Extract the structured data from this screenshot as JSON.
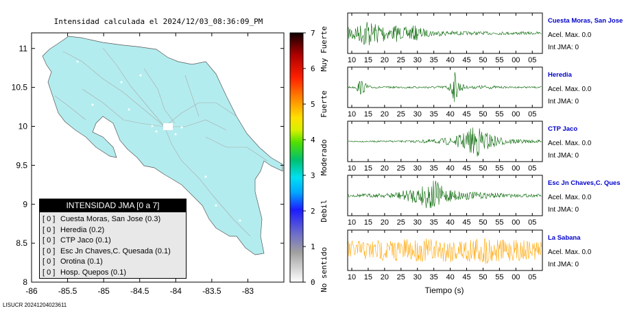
{
  "chart_data": [
    {
      "type": "map",
      "title": "Intensidad calculada el 2024/12/03_08:36:09_PM",
      "xlim": [
        -86,
        -82.5
      ],
      "ylim": [
        8,
        11.2
      ],
      "x_ticks": [
        -86,
        -85.5,
        -85,
        -84.5,
        -84,
        -83.5,
        -83
      ],
      "y_ticks": [
        8,
        8.5,
        9,
        9.5,
        10,
        10.5,
        11
      ],
      "x_tick_labels": [
        "-86",
        "-85.5",
        "-85",
        "-84.5",
        "-84",
        "-83.5",
        "-83"
      ],
      "y_tick_labels": [
        "8",
        "8.5",
        "9",
        "9.5",
        "10",
        "10.5",
        "11"
      ],
      "land_color": "#b3ecee",
      "colorbar": {
        "range": [
          0,
          7
        ],
        "ticks": [
          "0",
          "1",
          "2",
          "3",
          "4",
          "5",
          "6",
          "7"
        ],
        "tick_values": [
          0,
          1,
          2,
          3,
          4,
          5,
          6,
          7
        ],
        "category_labels": [
          {
            "label": "No sentido",
            "value": 0.35
          },
          {
            "label": "Debil",
            "value": 2.0
          },
          {
            "label": "Moderado",
            "value": 3.5
          },
          {
            "label": "Fuerte",
            "value": 5.0
          },
          {
            "label": "Muy Fuerte",
            "value": 6.55
          }
        ]
      },
      "legend": {
        "title": "INTENSIDAD JMA [0 a 7]",
        "placement": "bottom-left",
        "entries": [
          {
            "bracket": "[ 0 ]",
            "name": "Cuesta Moras, San Jose (0.3)"
          },
          {
            "bracket": "[ 0 ]",
            "name": "Heredia (0.2)"
          },
          {
            "bracket": "[ 0 ]",
            "name": "CTP Jaco (0.1)"
          },
          {
            "bracket": "[ 0 ]",
            "name": "Esc Jn Chaves,C. Quesada (0.1)"
          },
          {
            "bracket": "[ 0 ]",
            "name": "Orotina (0.1)"
          },
          {
            "bracket": "[ 0 ]",
            "name": "Hosp. Quepos (0.1)"
          }
        ]
      }
    },
    {
      "type": "line",
      "xlabel": "Tiempo (s)",
      "x_tick_labels": [
        "10",
        "15",
        "20",
        "25",
        "30",
        "35",
        "40",
        "45",
        "50",
        "55",
        "00",
        "05"
      ],
      "series": [
        {
          "name": "Cuesta Moras, San Jose",
          "color": "#006400",
          "acel_label": "Acel. Max. 0.0",
          "int_label": "Int JMA: 0",
          "envelope": [
            [
              0,
              0.3
            ],
            [
              3,
              0.6
            ],
            [
              5,
              0.4
            ],
            [
              10,
              0.9
            ],
            [
              13,
              0.5
            ],
            [
              17,
              0.7
            ],
            [
              21,
              0.3
            ],
            [
              25,
              0.5
            ],
            [
              28,
              0.3
            ],
            [
              35,
              0.45
            ],
            [
              40,
              0.2
            ],
            [
              48,
              0.15
            ],
            [
              60,
              0.1
            ],
            [
              100,
              0.08
            ]
          ]
        },
        {
          "name": "Heredia",
          "color": "#006400",
          "acel_label": "Acel. Max. 0.0",
          "int_label": "Int JMA: 0",
          "envelope": [
            [
              0,
              0.04
            ],
            [
              4,
              0.06
            ],
            [
              6,
              0.45
            ],
            [
              9,
              0.25
            ],
            [
              12,
              0.06
            ],
            [
              30,
              0.05
            ],
            [
              50,
              0.08
            ],
            [
              53,
              0.3
            ],
            [
              55,
              0.9
            ],
            [
              58,
              0.25
            ],
            [
              62,
              0.06
            ],
            [
              70,
              0.12
            ],
            [
              80,
              0.05
            ],
            [
              100,
              0.04
            ]
          ]
        },
        {
          "name": "CTP Jaco",
          "color": "#006400",
          "acel_label": "Acel. Max. 0.0",
          "int_label": "Int JMA: 0",
          "envelope": [
            [
              0,
              0.03
            ],
            [
              30,
              0.05
            ],
            [
              45,
              0.12
            ],
            [
              55,
              0.25
            ],
            [
              60,
              0.5
            ],
            [
              66,
              0.95
            ],
            [
              70,
              0.6
            ],
            [
              75,
              0.35
            ],
            [
              80,
              0.2
            ],
            [
              90,
              0.1
            ],
            [
              100,
              0.08
            ]
          ]
        },
        {
          "name": "Esc Jn Chaves,C. Ques",
          "color": "#006400",
          "acel_label": "Acel. Max. 0.0",
          "int_label": "Int JMA: 0",
          "envelope": [
            [
              0,
              0.08
            ],
            [
              20,
              0.12
            ],
            [
              30,
              0.3
            ],
            [
              38,
              0.55
            ],
            [
              44,
              0.95
            ],
            [
              50,
              0.4
            ],
            [
              58,
              0.3
            ],
            [
              65,
              0.2
            ],
            [
              75,
              0.15
            ],
            [
              85,
              0.1
            ],
            [
              100,
              0.08
            ]
          ]
        },
        {
          "name": "La Sabana",
          "color": "#ffa500",
          "acel_label": "Acel. Max. 0.0",
          "int_label": "Int JMA: 0",
          "envelope": [
            [
              0,
              0.55
            ],
            [
              20,
              0.6
            ],
            [
              40,
              0.65
            ],
            [
              60,
              0.7
            ],
            [
              72,
              0.8
            ],
            [
              80,
              0.6
            ],
            [
              100,
              0.55
            ]
          ]
        }
      ]
    }
  ],
  "footer": {
    "code": "LISUCR 20241204023611"
  }
}
